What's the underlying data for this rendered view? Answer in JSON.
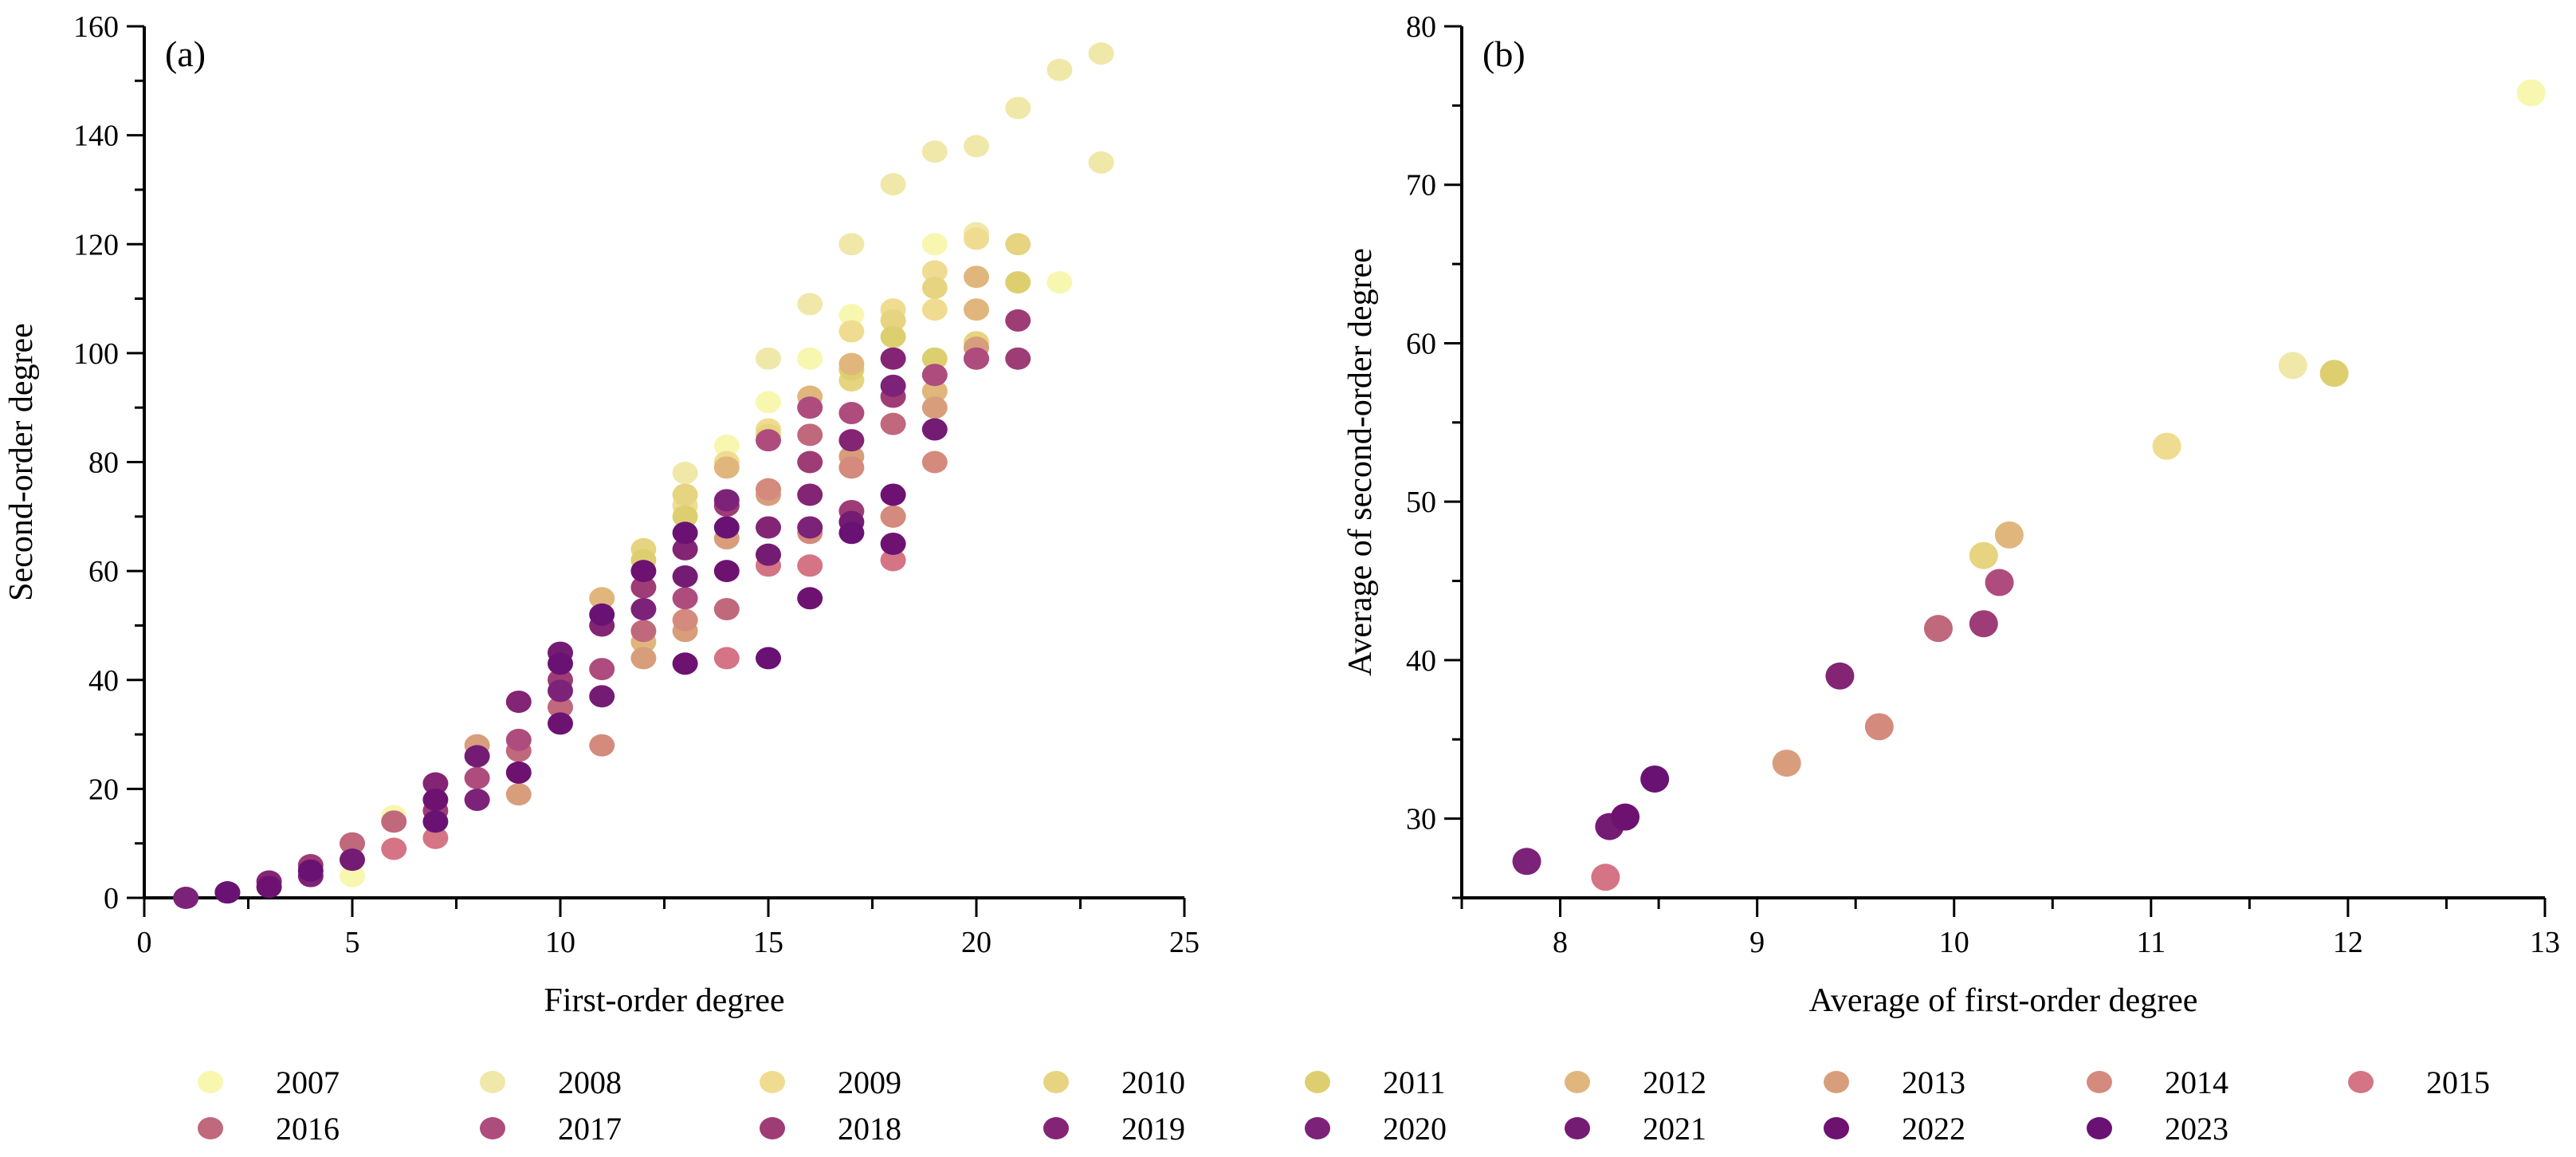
{
  "chart_data": [
    {
      "type": "scatter",
      "panel_label": "(a)",
      "xlabel": "First-order degree",
      "ylabel": "Second-order degree",
      "xlim": [
        0,
        25
      ],
      "ylim": [
        0,
        160
      ],
      "xticks": [
        "0",
        "5",
        "10",
        "15",
        "20",
        "25"
      ],
      "yticks": [
        "0",
        "20",
        "40",
        "60",
        "80",
        "100",
        "120",
        "140",
        "160"
      ],
      "series": [
        {
          "name": "2007",
          "color": "#f7f7b0",
          "points": [
            [
              5,
              4
            ],
            [
              6,
              15
            ],
            [
              14,
              83
            ],
            [
              15,
              91
            ],
            [
              16,
              99
            ],
            [
              17,
              107
            ],
            [
              19,
              120
            ],
            [
              22,
              113
            ]
          ]
        },
        {
          "name": "2008",
          "color": "#efe8a8",
          "points": [
            [
              13,
              78
            ],
            [
              15,
              99
            ],
            [
              16,
              109
            ],
            [
              17,
              120
            ],
            [
              18,
              131
            ],
            [
              19,
              137
            ],
            [
              20,
              138
            ],
            [
              20,
              122
            ],
            [
              21,
              145
            ],
            [
              22,
              152
            ],
            [
              23,
              155
            ],
            [
              23,
              135
            ]
          ]
        },
        {
          "name": "2009",
          "color": "#f0dc90",
          "points": [
            [
              13,
              72
            ],
            [
              14,
              80
            ],
            [
              15,
              86
            ],
            [
              17,
              104
            ],
            [
              18,
              108
            ],
            [
              19,
              115
            ],
            [
              19,
              108
            ],
            [
              20,
              121
            ]
          ]
        },
        {
          "name": "2010",
          "color": "#e6d480",
          "points": [
            [
              12,
              64
            ],
            [
              13,
              74
            ],
            [
              15,
              85
            ],
            [
              17,
              95
            ],
            [
              18,
              106
            ],
            [
              19,
              112
            ],
            [
              20,
              102
            ],
            [
              21,
              120
            ]
          ]
        },
        {
          "name": "2011",
          "color": "#ddcf70",
          "points": [
            [
              12,
              62
            ],
            [
              13,
              70
            ],
            [
              17,
              97
            ],
            [
              18,
              103
            ],
            [
              19,
              99
            ],
            [
              21,
              113
            ]
          ]
        },
        {
          "name": "2012",
          "color": "#e0b67c",
          "points": [
            [
              11,
              55
            ],
            [
              12,
              47
            ],
            [
              14,
              79
            ],
            [
              16,
              92
            ],
            [
              17,
              98
            ],
            [
              19,
              93
            ],
            [
              20,
              114
            ],
            [
              20,
              108
            ]
          ]
        },
        {
          "name": "2013",
          "color": "#d89e7c",
          "points": [
            [
              8,
              28
            ],
            [
              9,
              19
            ],
            [
              12,
              44
            ],
            [
              13,
              49
            ],
            [
              14,
              66
            ],
            [
              15,
              74
            ],
            [
              17,
              81
            ],
            [
              18,
              70
            ],
            [
              19,
              90
            ],
            [
              20,
              101
            ]
          ]
        },
        {
          "name": "2014",
          "color": "#d48a7c",
          "points": [
            [
              11,
              28
            ],
            [
              13,
              51
            ],
            [
              15,
              75
            ],
            [
              16,
              67
            ],
            [
              17,
              79
            ],
            [
              18,
              70
            ],
            [
              19,
              80
            ]
          ]
        },
        {
          "name": "2015",
          "color": "#d47484",
          "points": [
            [
              6,
              9
            ],
            [
              7,
              11
            ],
            [
              14,
              44
            ],
            [
              15,
              61
            ],
            [
              16,
              61
            ],
            [
              18,
              62
            ]
          ]
        },
        {
          "name": "2016",
          "color": "#c0687c",
          "points": [
            [
              5,
              10
            ],
            [
              6,
              14
            ],
            [
              9,
              27
            ],
            [
              10,
              35
            ],
            [
              12,
              49
            ],
            [
              14,
              53
            ],
            [
              16,
              85
            ],
            [
              18,
              87
            ],
            [
              20,
              99
            ]
          ]
        },
        {
          "name": "2017",
          "color": "#ae4c7e",
          "points": [
            [
              8,
              22
            ],
            [
              9,
              29
            ],
            [
              11,
              42
            ],
            [
              13,
              55
            ],
            [
              15,
              84
            ],
            [
              16,
              90
            ],
            [
              17,
              89
            ],
            [
              19,
              96
            ],
            [
              20,
              99
            ]
          ]
        },
        {
          "name": "2018",
          "color": "#9e3c76",
          "points": [
            [
              4,
              6
            ],
            [
              7,
              16
            ],
            [
              10,
              40
            ],
            [
              12,
              57
            ],
            [
              14,
              72
            ],
            [
              16,
              80
            ],
            [
              17,
              71
            ],
            [
              18,
              92
            ],
            [
              21,
              106
            ],
            [
              21,
              99
            ]
          ]
        },
        {
          "name": "2019",
          "color": "#842474",
          "points": [
            [
              3,
              3
            ],
            [
              7,
              21
            ],
            [
              9,
              36
            ],
            [
              11,
              50
            ],
            [
              13,
              64
            ],
            [
              15,
              68
            ],
            [
              16,
              74
            ],
            [
              17,
              84
            ],
            [
              18,
              99
            ]
          ]
        },
        {
          "name": "2020",
          "color": "#7c2278",
          "points": [
            [
              1,
              0
            ],
            [
              4,
              4
            ],
            [
              8,
              18
            ],
            [
              10,
              38
            ],
            [
              12,
              53
            ],
            [
              14,
              73
            ],
            [
              16,
              68
            ],
            [
              18,
              94
            ]
          ]
        },
        {
          "name": "2021",
          "color": "#741c74",
          "points": [
            [
              2,
              1
            ],
            [
              5,
              7
            ],
            [
              8,
              26
            ],
            [
              10,
              45
            ],
            [
              11,
              37
            ],
            [
              13,
              59
            ],
            [
              15,
              63
            ],
            [
              17,
              69
            ],
            [
              19,
              86
            ]
          ]
        },
        {
          "name": "2022",
          "color": "#6e1272",
          "points": [
            [
              3,
              2
            ],
            [
              7,
              18
            ],
            [
              9,
              23
            ],
            [
              10,
              32
            ],
            [
              12,
              60
            ],
            [
              13,
              43
            ],
            [
              14,
              60
            ],
            [
              16,
              55
            ],
            [
              18,
              74
            ],
            [
              18,
              65
            ]
          ]
        },
        {
          "name": "2023",
          "color": "#6a1274",
          "points": [
            [
              2,
              1
            ],
            [
              4,
              5
            ],
            [
              7,
              14
            ],
            [
              10,
              43
            ],
            [
              11,
              52
            ],
            [
              13,
              67
            ],
            [
              14,
              68
            ],
            [
              15,
              44
            ],
            [
              17,
              67
            ]
          ]
        }
      ]
    },
    {
      "type": "scatter",
      "panel_label": "(b)",
      "xlabel": "Average of first-order degree",
      "ylabel": "Average of second-order degree",
      "xlim": [
        7.5,
        13
      ],
      "ylim": [
        25,
        80
      ],
      "xticks": [
        "8",
        "9",
        "10",
        "11",
        "12",
        "13"
      ],
      "yticks": [
        "30",
        "40",
        "50",
        "60",
        "70",
        "80"
      ],
      "points": [
        {
          "year": "2007",
          "x": 12.93,
          "y": 75.8
        },
        {
          "year": "2008",
          "x": 11.72,
          "y": 58.6
        },
        {
          "year": "2009",
          "x": 11.08,
          "y": 53.5
        },
        {
          "year": "2010",
          "x": 10.15,
          "y": 46.6
        },
        {
          "year": "2011",
          "x": 11.93,
          "y": 58.1
        },
        {
          "year": "2012",
          "x": 10.28,
          "y": 47.9
        },
        {
          "year": "2013",
          "x": 9.15,
          "y": 33.5
        },
        {
          "year": "2014",
          "x": 9.62,
          "y": 35.8
        },
        {
          "year": "2015",
          "x": 8.23,
          "y": 26.3
        },
        {
          "year": "2016",
          "x": 9.92,
          "y": 42.0
        },
        {
          "year": "2017",
          "x": 10.23,
          "y": 44.9
        },
        {
          "year": "2018",
          "x": 10.15,
          "y": 42.3
        },
        {
          "year": "2019",
          "x": 9.42,
          "y": 39.0
        },
        {
          "year": "2020",
          "x": 7.83,
          "y": 27.3
        },
        {
          "year": "2021",
          "x": 8.25,
          "y": 29.5
        },
        {
          "year": "2022",
          "x": 8.33,
          "y": 30.1
        },
        {
          "year": "2023",
          "x": 8.48,
          "y": 32.5
        }
      ]
    }
  ],
  "legend": {
    "placement": "bottom",
    "items": [
      "2007",
      "2008",
      "2009",
      "2010",
      "2011",
      "2012",
      "2013",
      "2014",
      "2015",
      "2016",
      "2017",
      "2018",
      "2019",
      "2020",
      "2021",
      "2022",
      "2023"
    ]
  }
}
